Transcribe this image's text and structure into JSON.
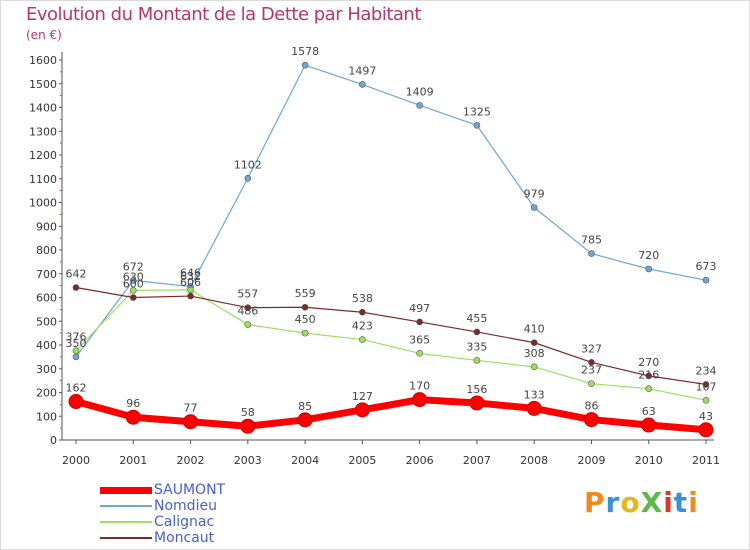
{
  "chart_data": {
    "type": "line",
    "title": "Evolution du Montant de la Dette par Habitant",
    "unit": "(en €)",
    "categories": [
      "2000",
      "2001",
      "2002",
      "2003",
      "2004",
      "2005",
      "2006",
      "2007",
      "2008",
      "2009",
      "2010",
      "2011"
    ],
    "ylim": [
      0,
      1600
    ],
    "yticks": [
      0,
      100,
      200,
      300,
      400,
      500,
      600,
      700,
      800,
      900,
      1000,
      1100,
      1200,
      1300,
      1400,
      1500,
      1600
    ],
    "grid": false,
    "legend_position": "bottom-left",
    "series": [
      {
        "name": "SAUMONT",
        "color": "#ff0000",
        "values": [
          162,
          96,
          77,
          58,
          85,
          127,
          170,
          156,
          133,
          86,
          63,
          43
        ]
      },
      {
        "name": "Nomdieu",
        "color": "#6ea6d6",
        "values": [
          350,
          672,
          646,
          1102,
          1578,
          1497,
          1409,
          1325,
          979,
          785,
          720,
          673
        ]
      },
      {
        "name": "Calignac",
        "color": "#9be060",
        "values": [
          376,
          630,
          632,
          486,
          450,
          423,
          365,
          335,
          308,
          237,
          216,
          167
        ]
      },
      {
        "name": "Moncaut",
        "color": "#7a2a2a",
        "values": [
          642,
          600,
          606,
          557,
          559,
          538,
          497,
          455,
          410,
          327,
          270,
          234
        ]
      }
    ]
  },
  "logo": {
    "text": "ProXiti",
    "colors": [
      "#f08a1c",
      "#3a8fd6",
      "#e8b51c",
      "#5cb84a",
      "#d43a2a",
      "#3a8fd6",
      "#f08a1c"
    ]
  }
}
